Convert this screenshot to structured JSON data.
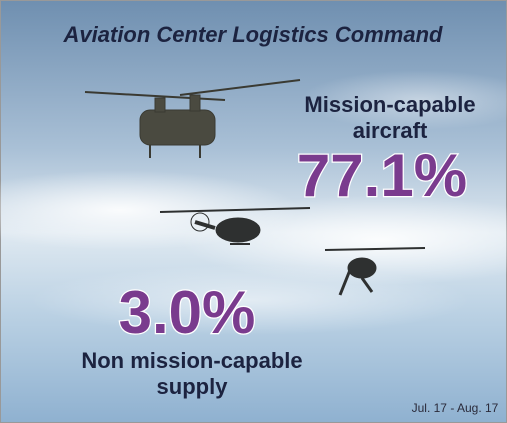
{
  "header": {
    "title": "Aviation Center Logistics Command"
  },
  "stats": [
    {
      "value": "77.1%",
      "label_lines": [
        "Mission-capable",
        "aircraft"
      ]
    },
    {
      "value": "3.0%",
      "label_lines": [
        "Non mission-capable",
        "supply"
      ]
    }
  ],
  "footer": {
    "period": "Jul. 17 - Aug. 17"
  }
}
